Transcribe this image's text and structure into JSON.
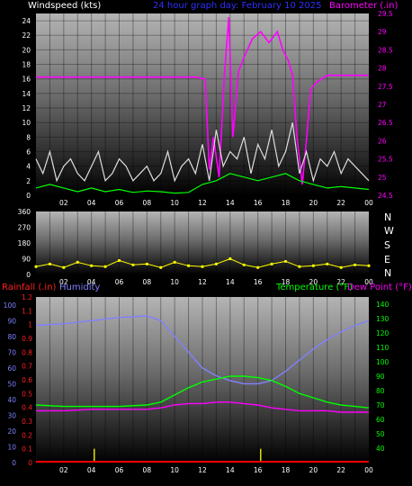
{
  "colors": {
    "wind_axis": "#ffffff",
    "title": "#3030ff",
    "barometer": "#ff00ff",
    "direction": "#ffff00",
    "rain_axis": "#ff2020",
    "humidity_axis": "#8080ff",
    "temperature": "#00ff00",
    "dewpoint": "#ff00ff",
    "wind_gust": "#dddddd",
    "wind_avg": "#00ff00",
    "rain_bar": "#e0e000",
    "rain_base": "#ff0000"
  },
  "chart_data": [
    {
      "type": "line",
      "title": "24 hour graph day:  February 10 2025",
      "ylabel": "Windspeed (kts)",
      "y2label": "Barometer (.in)",
      "ylim": [
        0,
        25
      ],
      "y2lim": [
        24.5,
        29.5
      ],
      "yticks": [
        "0",
        "2",
        "4",
        "6",
        "8",
        "10",
        "12",
        "14",
        "16",
        "18",
        "20",
        "22",
        "24"
      ],
      "y2ticks": [
        "24.5",
        "25",
        "25.5",
        "26",
        "26.5",
        "27",
        "27.5",
        "28",
        "28.5",
        "29",
        "29.5"
      ],
      "xticks": [
        "02",
        "04",
        "06",
        "08",
        "10",
        "12",
        "14",
        "16",
        "18",
        "20",
        "22",
        "00"
      ],
      "xlim": [
        0,
        24
      ],
      "series": [
        {
          "key": "barometer",
          "axis": "right",
          "x": [
            0,
            2,
            4,
            6,
            8,
            10,
            11.5,
            12.2,
            12.5,
            12.8,
            13.2,
            13.6,
            13.9,
            14.2,
            14.6,
            15,
            15.6,
            16.2,
            16.8,
            17.4,
            17.8,
            18.2,
            18.5,
            18.8,
            19.2,
            19.5,
            19.8,
            20.2,
            20.6,
            21,
            22,
            24
          ],
          "y": [
            27.75,
            27.75,
            27.75,
            27.75,
            27.75,
            27.75,
            27.75,
            27.7,
            25.2,
            26.1,
            25.0,
            27.9,
            29.4,
            26.1,
            27.9,
            28.3,
            28.8,
            29.0,
            28.7,
            29.0,
            28.5,
            28.2,
            27.8,
            26.2,
            24.8,
            26.0,
            27.4,
            27.6,
            27.7,
            27.8,
            27.8,
            27.8
          ]
        },
        {
          "key": "wind_gust",
          "axis": "left",
          "x": [
            0,
            0.5,
            1,
            1.5,
            2,
            2.5,
            3,
            3.5,
            4,
            4.5,
            5,
            5.5,
            6,
            6.5,
            7,
            7.5,
            8,
            8.5,
            9,
            9.5,
            10,
            10.5,
            11,
            11.5,
            12,
            12.5,
            13,
            13.5,
            14,
            14.5,
            15,
            15.5,
            16,
            16.5,
            17,
            17.5,
            18,
            18.5,
            19,
            19.5,
            20,
            20.5,
            21,
            21.5,
            22,
            22.5,
            23,
            23.5,
            24
          ],
          "y": [
            5,
            3,
            6,
            2,
            4,
            5,
            3,
            2,
            4,
            6,
            2,
            3,
            5,
            4,
            2,
            3,
            4,
            2,
            3,
            6,
            2,
            4,
            5,
            3,
            7,
            2,
            9,
            4,
            6,
            5,
            8,
            3,
            7,
            5,
            9,
            4,
            6,
            10,
            3,
            6,
            2,
            5,
            4,
            6,
            3,
            5,
            4,
            3,
            2
          ]
        },
        {
          "key": "wind_avg",
          "axis": "left",
          "x": [
            0,
            1,
            2,
            3,
            4,
            5,
            6,
            7,
            8,
            9,
            10,
            11,
            12,
            13,
            14,
            15,
            16,
            17,
            18,
            19,
            20,
            21,
            22,
            23,
            24
          ],
          "y": [
            1,
            1.5,
            1,
            0.5,
            1,
            0.5,
            0.8,
            0.4,
            0.6,
            0.5,
            0.3,
            0.4,
            1.5,
            2,
            3,
            2.5,
            2,
            2.5,
            3,
            2,
            1.5,
            1,
            1.2,
            1,
            0.8
          ]
        }
      ]
    },
    {
      "type": "line",
      "title": "",
      "ylabel": "",
      "ylim": [
        0,
        360
      ],
      "yticks": [
        "0",
        "45",
        "90",
        "135",
        "180",
        "225",
        "270",
        "315",
        "360"
      ],
      "compass": [
        "N",
        "W",
        "S",
        "E",
        "N"
      ],
      "xticks": [
        "02",
        "04",
        "06",
        "08",
        "10",
        "12",
        "14",
        "16",
        "18",
        "20",
        "22",
        "00"
      ],
      "xlim": [
        0,
        24
      ],
      "series": [
        {
          "key": "direction",
          "x": [
            0,
            1,
            2,
            3,
            4,
            5,
            6,
            7,
            8,
            9,
            10,
            11,
            12,
            13,
            14,
            15,
            16,
            17,
            18,
            19,
            20,
            21,
            22,
            23,
            24
          ],
          "y": [
            45,
            60,
            40,
            70,
            50,
            45,
            80,
            55,
            60,
            40,
            70,
            50,
            45,
            60,
            90,
            55,
            40,
            60,
            75,
            45,
            50,
            60,
            40,
            55,
            50
          ]
        }
      ]
    },
    {
      "type": "line",
      "title": "",
      "ylabel": "Rainfall (.in)",
      "ylabel2": "Humidity",
      "y2label": "Temperature (°F)",
      "y2label2": "Dew Point (°F)",
      "ylim": [
        0,
        1.2
      ],
      "y2lim": [
        30,
        145
      ],
      "yticks": [
        "0",
        "0.1",
        "0.2",
        "0.3",
        "0.4",
        "0.5",
        "0.6",
        "0.7",
        "0.8",
        "0.9",
        "1",
        "1.1",
        "1.2"
      ],
      "humidity_ticks": [
        "0",
        "10",
        "20",
        "30",
        "40",
        "50",
        "60",
        "70",
        "80",
        "90",
        "100"
      ],
      "y2ticks": [
        "40",
        "50",
        "60",
        "70",
        "80",
        "90",
        "100",
        "110",
        "120",
        "130",
        "140"
      ],
      "xticks": [
        "02",
        "04",
        "06",
        "08",
        "10",
        "12",
        "14",
        "16",
        "18",
        "20",
        "22",
        "00"
      ],
      "xlim": [
        0,
        24
      ],
      "series": [
        {
          "key": "humidity",
          "axis": "humidity",
          "x": [
            0,
            2,
            4,
            6,
            8,
            9,
            10,
            11,
            12,
            13,
            14,
            15,
            16,
            17,
            18,
            19,
            20,
            21,
            22,
            23,
            24
          ],
          "y": [
            87,
            88,
            90,
            92,
            93,
            90,
            80,
            70,
            60,
            55,
            52,
            50,
            50,
            52,
            58,
            65,
            72,
            78,
            83,
            87,
            90
          ]
        },
        {
          "key": "temperature",
          "axis": "right",
          "x": [
            0,
            2,
            4,
            6,
            8,
            9,
            10,
            11,
            12,
            13,
            14,
            15,
            16,
            17,
            18,
            19,
            20,
            21,
            22,
            23,
            24
          ],
          "y": [
            70,
            69,
            69,
            69,
            70,
            72,
            77,
            82,
            86,
            88,
            90,
            90,
            89,
            87,
            83,
            78,
            75,
            72,
            70,
            69,
            68
          ]
        },
        {
          "key": "dewpoint",
          "axis": "right",
          "x": [
            0,
            2,
            4,
            6,
            8,
            9,
            10,
            11,
            12,
            13,
            14,
            15,
            16,
            17,
            18,
            19,
            20,
            21,
            22,
            23,
            24
          ],
          "y": [
            66,
            66,
            67,
            67,
            67,
            68,
            70,
            71,
            71,
            72,
            72,
            71,
            70,
            68,
            67,
            66,
            66,
            66,
            65,
            65,
            65
          ]
        },
        {
          "key": "rainfall",
          "axis": "left",
          "type": "bar",
          "x": [
            4.2,
            16.2
          ],
          "y": [
            0.1,
            0.1
          ]
        }
      ]
    }
  ]
}
